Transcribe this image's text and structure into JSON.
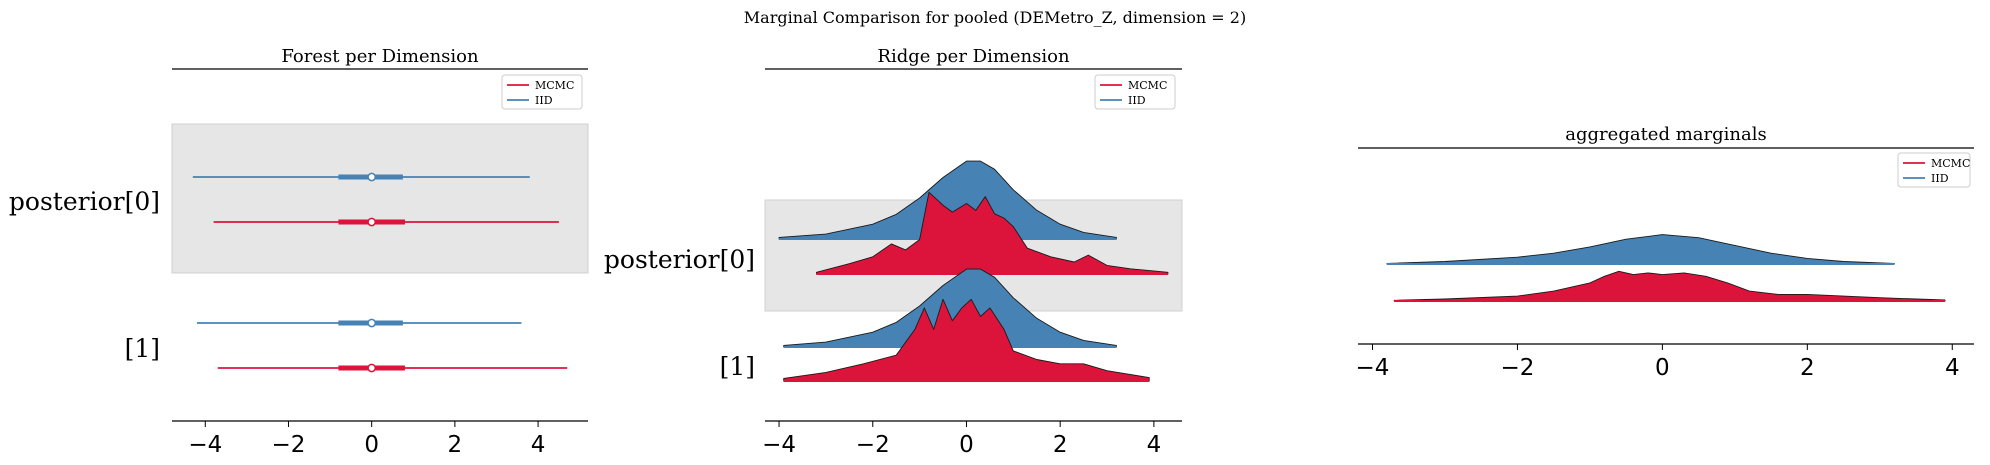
{
  "figure": {
    "suptitle": "Marginal Comparison for pooled (DEMetro_Z, dimension = 2)"
  },
  "colors": {
    "mcmc": "#dc143c",
    "iid": "#4682b4",
    "band": "#e6e6e6"
  },
  "legend": {
    "mcmc": "MCMC",
    "iid": "IID"
  },
  "chart_data": [
    {
      "type": "forest",
      "title": "Forest per Dimension",
      "ylabels": [
        "posterior[0]",
        "[1]"
      ],
      "xticks": [
        -4,
        -2,
        0,
        2,
        4
      ],
      "xlim": [
        -4.8,
        5.2
      ],
      "legend_position": "top-right",
      "series": [
        {
          "name": "IID",
          "param": "posterior[0]",
          "min": -4.3,
          "q25": -0.8,
          "median": 0.0,
          "q75": 0.75,
          "max": 3.8
        },
        {
          "name": "MCMC",
          "param": "posterior[0]",
          "min": -3.8,
          "q25": -0.8,
          "median": 0.0,
          "q75": 0.8,
          "max": 4.5
        },
        {
          "name": "IID",
          "param": "[1]",
          "min": -4.2,
          "q25": -0.8,
          "median": 0.0,
          "q75": 0.75,
          "max": 3.6
        },
        {
          "name": "MCMC",
          "param": "[1]",
          "min": -3.7,
          "q25": -0.8,
          "median": 0.0,
          "q75": 0.8,
          "max": 4.7
        }
      ]
    },
    {
      "type": "ridge",
      "title": "Ridge per Dimension",
      "ylabels": [
        "posterior[0]",
        "[1]"
      ],
      "xticks": [
        -4,
        -2,
        0,
        2,
        4
      ],
      "xlim": [
        -4.3,
        4.6
      ],
      "legend_position": "top-right",
      "series": [
        {
          "name": "IID",
          "param": "posterior[0]",
          "range": [
            -4.0,
            3.2
          ],
          "x": [
            -4.0,
            -3.0,
            -2.0,
            -1.5,
            -1.0,
            -0.5,
            0.0,
            0.3,
            0.6,
            1.0,
            1.5,
            2.0,
            2.5,
            3.2
          ],
          "density": [
            0.02,
            0.06,
            0.18,
            0.3,
            0.5,
            0.75,
            0.95,
            0.95,
            0.85,
            0.6,
            0.35,
            0.18,
            0.08,
            0.02
          ]
        },
        {
          "name": "MCMC",
          "param": "posterior[0]",
          "range": [
            -3.2,
            4.3
          ],
          "x": [
            -3.2,
            -2.5,
            -2.0,
            -1.6,
            -1.3,
            -1.0,
            -0.8,
            -0.5,
            -0.3,
            0.0,
            0.2,
            0.4,
            0.6,
            0.8,
            1.0,
            1.3,
            1.8,
            2.3,
            2.6,
            3.0,
            3.5,
            4.3
          ],
          "density": [
            0.02,
            0.12,
            0.2,
            0.35,
            0.28,
            0.4,
            0.95,
            0.8,
            0.72,
            0.82,
            0.74,
            0.9,
            0.7,
            0.65,
            0.55,
            0.3,
            0.2,
            0.14,
            0.22,
            0.1,
            0.06,
            0.02
          ]
        },
        {
          "name": "IID",
          "param": "[1]",
          "range": [
            -3.9,
            3.2
          ],
          "x": [
            -3.9,
            -3.0,
            -2.0,
            -1.5,
            -1.0,
            -0.5,
            0.0,
            0.3,
            0.6,
            1.0,
            1.5,
            2.0,
            2.5,
            3.2
          ],
          "density": [
            0.02,
            0.06,
            0.18,
            0.3,
            0.5,
            0.75,
            0.95,
            0.95,
            0.85,
            0.6,
            0.35,
            0.18,
            0.08,
            0.02
          ]
        },
        {
          "name": "MCMC",
          "param": "[1]",
          "range": [
            -3.9,
            3.9
          ],
          "x": [
            -3.9,
            -3.0,
            -2.2,
            -1.5,
            -1.1,
            -0.9,
            -0.7,
            -0.5,
            -0.3,
            -0.1,
            0.1,
            0.3,
            0.5,
            0.8,
            1.0,
            1.5,
            2.0,
            2.5,
            3.0,
            3.9
          ],
          "density": [
            0.03,
            0.1,
            0.2,
            0.3,
            0.6,
            0.85,
            0.6,
            0.95,
            0.7,
            0.85,
            0.95,
            0.75,
            0.85,
            0.6,
            0.35,
            0.25,
            0.2,
            0.2,
            0.12,
            0.04
          ]
        }
      ]
    },
    {
      "type": "ridge",
      "title": "aggregated marginals",
      "xticks": [
        -4,
        -2,
        0,
        2,
        4
      ],
      "xlim": [
        -4.2,
        4.3
      ],
      "legend_position": "top-right",
      "series": [
        {
          "name": "IID",
          "range": [
            -3.8,
            3.2
          ],
          "x": [
            -3.8,
            -3.0,
            -2.0,
            -1.5,
            -1.0,
            -0.5,
            0.0,
            0.5,
            1.0,
            1.5,
            2.0,
            2.5,
            3.2
          ],
          "density": [
            0.02,
            0.08,
            0.22,
            0.35,
            0.55,
            0.8,
            0.95,
            0.85,
            0.6,
            0.35,
            0.18,
            0.08,
            0.02
          ]
        },
        {
          "name": "MCMC",
          "range": [
            -3.7,
            3.9
          ],
          "x": [
            -3.7,
            -3.0,
            -2.0,
            -1.5,
            -1.0,
            -0.8,
            -0.6,
            -0.4,
            -0.2,
            0.0,
            0.3,
            0.6,
            0.9,
            1.2,
            1.6,
            2.0,
            2.5,
            3.0,
            3.5,
            3.9
          ],
          "density": [
            0.02,
            0.06,
            0.15,
            0.3,
            0.55,
            0.75,
            0.9,
            0.8,
            0.85,
            0.8,
            0.85,
            0.75,
            0.55,
            0.3,
            0.2,
            0.2,
            0.15,
            0.1,
            0.06,
            0.03
          ]
        }
      ]
    }
  ]
}
